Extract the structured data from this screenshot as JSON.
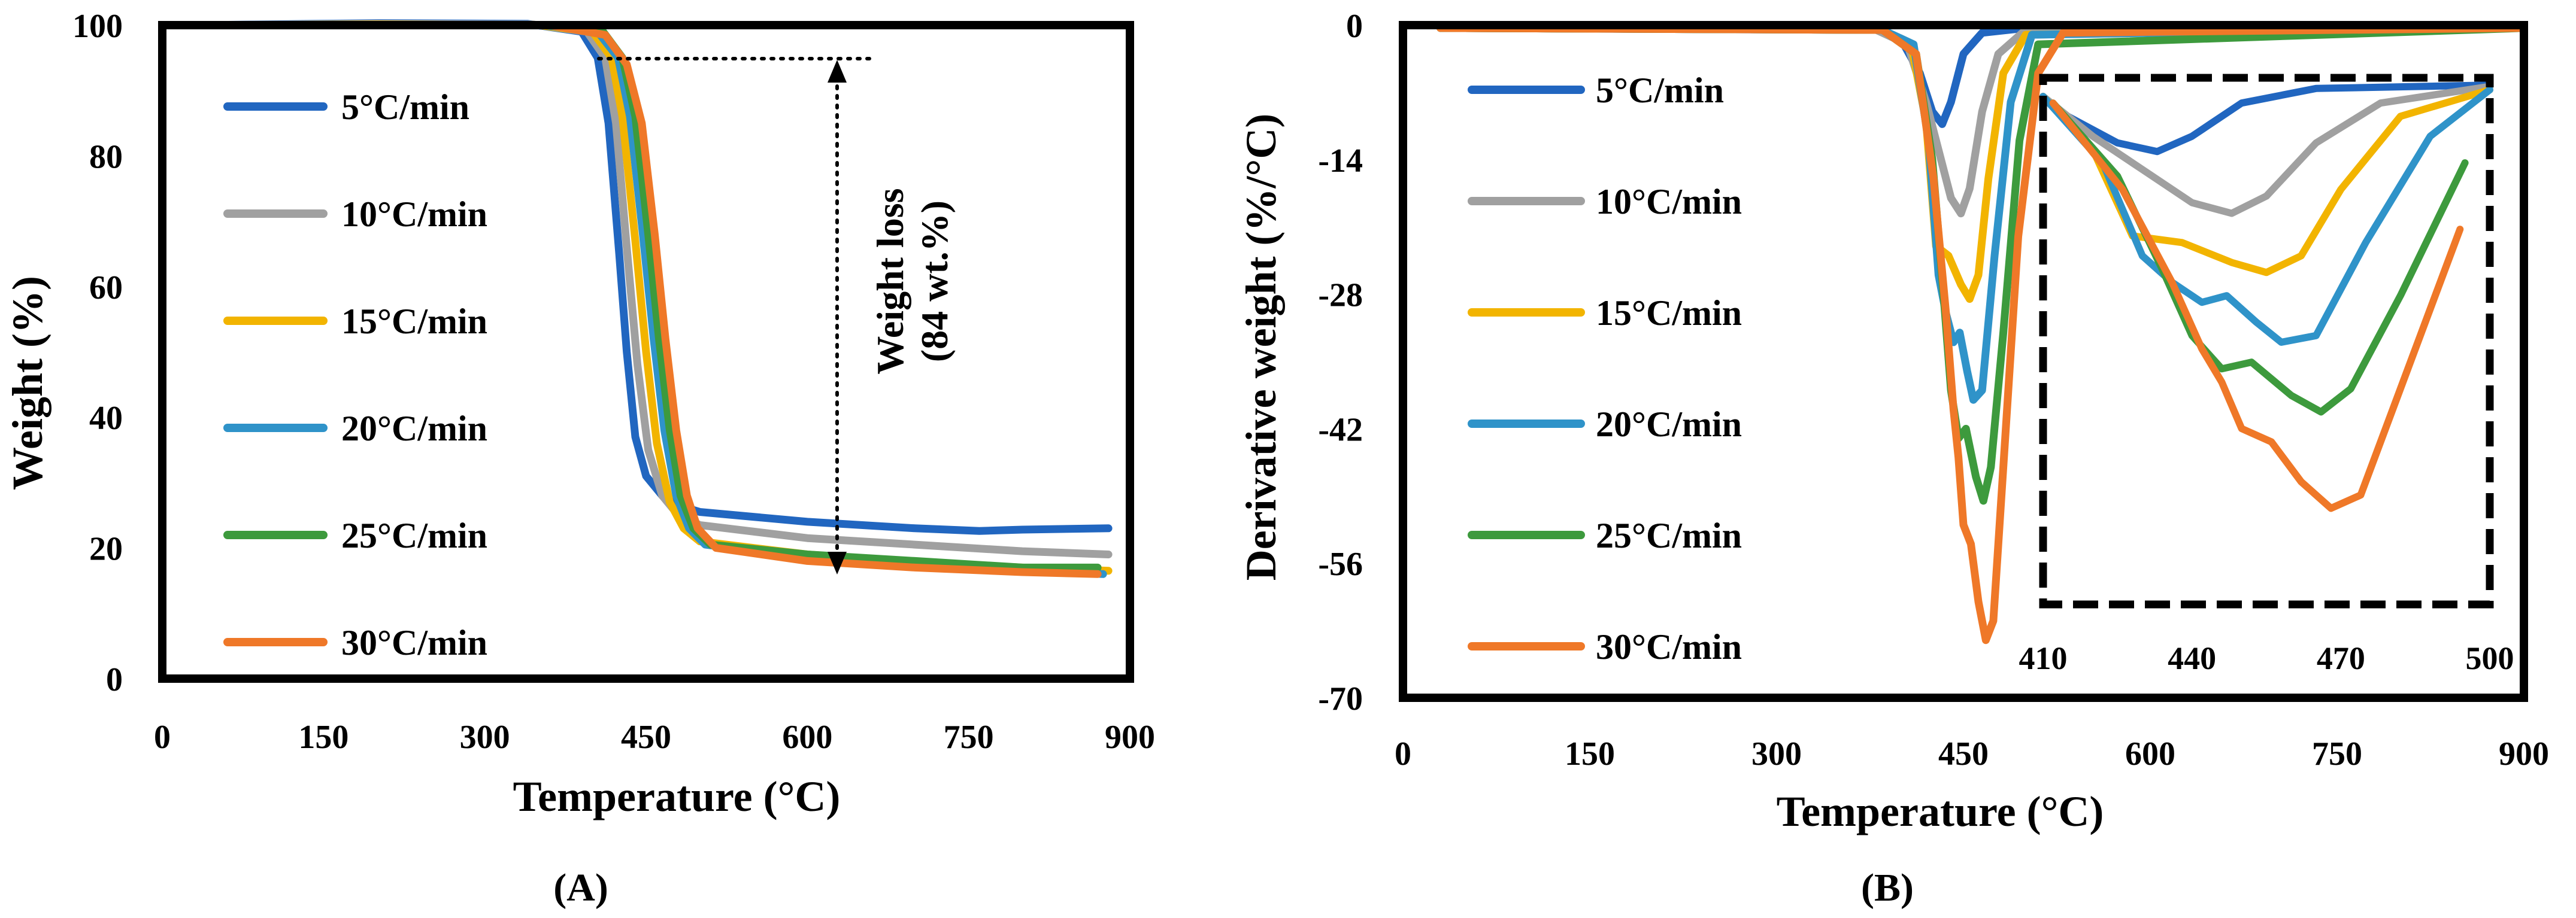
{
  "colors": {
    "5": "#2166c0",
    "10": "#a0a0a0",
    "15": "#f2b400",
    "20": "#2f93c9",
    "25": "#3d9a3d",
    "30": "#ef7828",
    "frame": "#000000"
  },
  "chart_data": [
    {
      "type": "line",
      "panel_label": "(A)",
      "xlabel": "Temperature (°C)",
      "ylabel": "Weight (%)",
      "xlim": [
        0,
        900
      ],
      "ylim": [
        0,
        100
      ],
      "xticks": [
        "0",
        "150",
        "300",
        "450",
        "600",
        "750",
        "900"
      ],
      "yticks": [
        "0",
        "20",
        "40",
        "60",
        "80",
        "100"
      ],
      "legend_position": "left",
      "annotation": {
        "line1": "Weight loss",
        "line2": "(84 wt.%)"
      },
      "series": [
        {
          "name": "5°C/min",
          "color_key": "5",
          "points": [
            [
              35,
              100
            ],
            [
              200,
              100.3
            ],
            [
              340,
              100.2
            ],
            [
              390,
              99
            ],
            [
              405,
              95
            ],
            [
              415,
              85
            ],
            [
              425,
              65
            ],
            [
              432,
              50
            ],
            [
              440,
              37
            ],
            [
              450,
              31
            ],
            [
              465,
              28
            ],
            [
              480,
              26.5
            ],
            [
              500,
              25.5
            ],
            [
              600,
              24
            ],
            [
              700,
              23
            ],
            [
              760,
              22.6
            ],
            [
              800,
              22.8
            ],
            [
              880,
              23
            ]
          ]
        },
        {
          "name": "10°C/min",
          "color_key": "10",
          "points": [
            [
              35,
              100
            ],
            [
              200,
              100.2
            ],
            [
              345,
              100.1
            ],
            [
              395,
              99
            ],
            [
              412,
              95
            ],
            [
              422,
              85
            ],
            [
              432,
              66
            ],
            [
              442,
              48
            ],
            [
              452,
              35
            ],
            [
              465,
              28
            ],
            [
              480,
              25
            ],
            [
              500,
              23.5
            ],
            [
              600,
              21.5
            ],
            [
              700,
              20.5
            ],
            [
              800,
              19.5
            ],
            [
              880,
              19
            ]
          ]
        },
        {
          "name": "15°C/min",
          "color_key": "15",
          "points": [
            [
              35,
              100
            ],
            [
              200,
              100.1
            ],
            [
              350,
              100
            ],
            [
              400,
              99
            ],
            [
              418,
              95
            ],
            [
              428,
              86
            ],
            [
              440,
              67
            ],
            [
              450,
              50
            ],
            [
              460,
              36
            ],
            [
              472,
              27
            ],
            [
              485,
              23
            ],
            [
              500,
              21
            ],
            [
              600,
              19
            ],
            [
              700,
              17.8
            ],
            [
              800,
              17
            ],
            [
              880,
              16.5
            ]
          ]
        },
        {
          "name": "20°C/min",
          "color_key": "20",
          "points": [
            [
              35,
              100
            ],
            [
              200,
              100
            ],
            [
              355,
              100
            ],
            [
              405,
              99
            ],
            [
              424,
              95
            ],
            [
              435,
              86
            ],
            [
              447,
              68
            ],
            [
              457,
              52
            ],
            [
              467,
              38
            ],
            [
              478,
              28
            ],
            [
              490,
              23
            ],
            [
              505,
              20.5
            ],
            [
              600,
              18.5
            ],
            [
              700,
              17.5
            ],
            [
              800,
              16.5
            ],
            [
              875,
              16
            ]
          ]
        },
        {
          "name": "25°C/min",
          "color_key": "25",
          "points": [
            [
              35,
              100
            ],
            [
              200,
              100
            ],
            [
              358,
              100
            ],
            [
              410,
              99
            ],
            [
              428,
              95
            ],
            [
              440,
              86
            ],
            [
              452,
              68
            ],
            [
              462,
              52
            ],
            [
              472,
              38
            ],
            [
              482,
              28
            ],
            [
              494,
              23
            ],
            [
              510,
              20.5
            ],
            [
              600,
              19
            ],
            [
              700,
              18
            ],
            [
              800,
              17
            ],
            [
              870,
              17
            ]
          ]
        },
        {
          "name": "30°C/min",
          "color_key": "30",
          "points": [
            [
              30,
              100
            ],
            [
              200,
              100
            ],
            [
              360,
              100
            ],
            [
              412,
              98.5
            ],
            [
              432,
              94
            ],
            [
              446,
              85
            ],
            [
              458,
              68
            ],
            [
              468,
              52
            ],
            [
              478,
              38
            ],
            [
              488,
              28
            ],
            [
              498,
              23
            ],
            [
              515,
              20
            ],
            [
              600,
              18
            ],
            [
              700,
              17
            ],
            [
              800,
              16.3
            ],
            [
              870,
              16
            ]
          ]
        }
      ]
    },
    {
      "type": "line",
      "panel_label": "(B)",
      "xlabel": "Temperature (°C)",
      "ylabel": "Derivative weight (%/°C)",
      "xlim": [
        0,
        900
      ],
      "ylim": [
        -70,
        0
      ],
      "xticks": [
        "0",
        "150",
        "300",
        "450",
        "600",
        "750",
        "900"
      ],
      "yticks": [
        "0",
        "-14",
        "-28",
        "-42",
        "-56",
        "-70"
      ],
      "legend_position": "left",
      "inset": {
        "xlim": [
          410,
          500
        ],
        "xticks": [
          "410",
          "440",
          "470",
          "500"
        ]
      },
      "series": [
        {
          "name": "5°C/min",
          "color_key": "5",
          "points": [
            [
              30,
              -0.3
            ],
            [
              380,
              -0.5
            ],
            [
              400,
              -1.5
            ],
            [
              415,
              -5
            ],
            [
              425,
              -9
            ],
            [
              433,
              -10.3
            ],
            [
              440,
              -8
            ],
            [
              450,
              -3
            ],
            [
              465,
              -0.8
            ],
            [
              500,
              -0.3
            ],
            [
              900,
              -0.2
            ]
          ]
        },
        {
          "name": "10°C/min",
          "color_key": "10",
          "points": [
            [
              30,
              -0.3
            ],
            [
              380,
              -0.5
            ],
            [
              405,
              -2
            ],
            [
              420,
              -8
            ],
            [
              430,
              -13
            ],
            [
              440,
              -18
            ],
            [
              448,
              -19.6
            ],
            [
              455,
              -17
            ],
            [
              465,
              -9
            ],
            [
              478,
              -3
            ],
            [
              500,
              -0.5
            ],
            [
              900,
              -0.2
            ]
          ]
        },
        {
          "name": "15°C/min",
          "color_key": "15",
          "points": [
            [
              30,
              -0.3
            ],
            [
              385,
              -0.5
            ],
            [
              408,
              -2
            ],
            [
              420,
              -10
            ],
            [
              428,
              -23
            ],
            [
              438,
              -24
            ],
            [
              448,
              -27
            ],
            [
              455,
              -28.5
            ],
            [
              462,
              -26
            ],
            [
              470,
              -16
            ],
            [
              482,
              -5
            ],
            [
              500,
              -1
            ],
            [
              900,
              -0.2
            ]
          ]
        },
        {
          "name": "20°C/min",
          "color_key": "20",
          "points": [
            [
              30,
              -0.3
            ],
            [
              385,
              -0.5
            ],
            [
              410,
              -2
            ],
            [
              422,
              -12
            ],
            [
              430,
              -26
            ],
            [
              436,
              -30
            ],
            [
              442,
              -33
            ],
            [
              447,
              -32
            ],
            [
              453,
              -36
            ],
            [
              458,
              -39
            ],
            [
              465,
              -38
            ],
            [
              475,
              -24
            ],
            [
              488,
              -8
            ],
            [
              505,
              -1
            ],
            [
              900,
              -0.2
            ]
          ]
        },
        {
          "name": "25°C/min",
          "color_key": "25",
          "points": [
            [
              30,
              -0.3
            ],
            [
              385,
              -0.5
            ],
            [
              412,
              -3
            ],
            [
              425,
              -14
            ],
            [
              434,
              -28
            ],
            [
              440,
              -38
            ],
            [
              446,
              -43
            ],
            [
              452,
              -42
            ],
            [
              460,
              -47
            ],
            [
              466,
              -49.5
            ],
            [
              472,
              -46
            ],
            [
              482,
              -32
            ],
            [
              495,
              -12
            ],
            [
              510,
              -2
            ],
            [
              900,
              -0.3
            ]
          ]
        },
        {
          "name": "30°C/min",
          "color_key": "30",
          "points": [
            [
              30,
              -0.3
            ],
            [
              385,
              -0.5
            ],
            [
              412,
              -3
            ],
            [
              426,
              -16
            ],
            [
              436,
              -30
            ],
            [
              442,
              -40
            ],
            [
              446,
              -45
            ],
            [
              450,
              -52
            ],
            [
              456,
              -54
            ],
            [
              462,
              -60
            ],
            [
              468,
              -64
            ],
            [
              474,
              -62
            ],
            [
              482,
              -46
            ],
            [
              494,
              -22
            ],
            [
              510,
              -5
            ],
            [
              530,
              -0.8
            ],
            [
              900,
              -0.3
            ]
          ]
        }
      ]
    }
  ]
}
